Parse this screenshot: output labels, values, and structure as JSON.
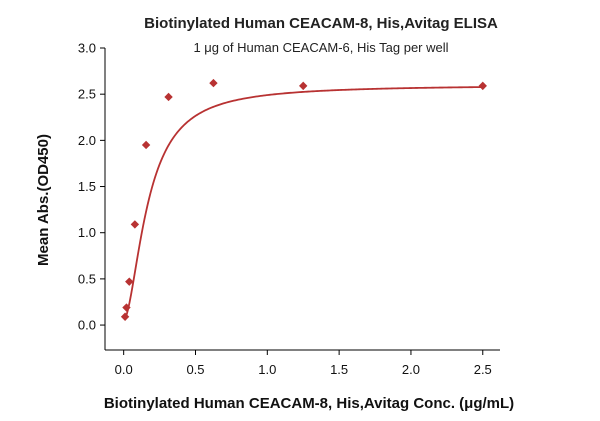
{
  "chart_data": {
    "type": "scatter",
    "title": "Biotinylated Human CEACAM-8, His,Avitag ELISA",
    "subtitle": "1 μg of Human CEACAM-6, His Tag per well",
    "xlabel": "Biotinylated Human CEACAM-8, His,Avitag Conc. (μg/mL)",
    "ylabel": "Mean Abs.(OD450)",
    "xlim": [
      -0.13,
      2.62
    ],
    "ylim": [
      -0.27,
      3.0
    ],
    "xticks": [
      "0.0",
      "0.5",
      "1.0",
      "1.5",
      "2.0",
      "2.5"
    ],
    "yticks": [
      "0.0",
      "0.5",
      "1.0",
      "1.5",
      "2.0",
      "2.5",
      "3.0"
    ],
    "grid": false,
    "series": [
      {
        "x": [
          0.0098,
          0.0195,
          0.039,
          0.078,
          0.156,
          0.3125,
          0.625,
          1.25,
          2.5
        ],
        "y": [
          0.09,
          0.19,
          0.47,
          1.09,
          1.95,
          2.47,
          2.62,
          2.59,
          2.59
        ],
        "marker": "diamond",
        "color": "#b83232",
        "fit": "sigmoidal"
      }
    ]
  }
}
